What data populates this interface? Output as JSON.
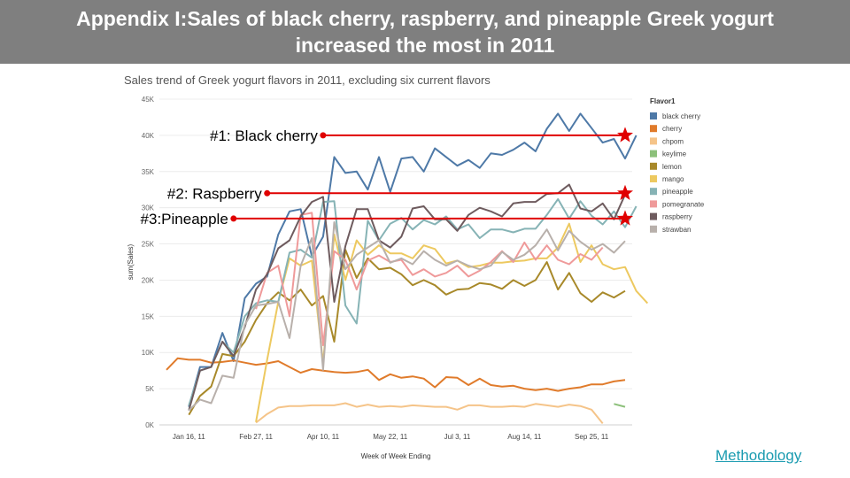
{
  "header": {
    "title_line1": "Appendix I:Sales of black cherry, raspberry, and pineapple Greek yogurt",
    "title_line2": "increased the most in 2011"
  },
  "methodology_link": "Methodology",
  "chart_data": {
    "type": "line",
    "title": "Sales trend of Greek yogurt flavors in 2011, excluding six current flavors",
    "xlabel": "Week of Week Ending",
    "ylabel": "sum(Sales)",
    "ylim": [
      0,
      45000
    ],
    "y_ticks": [
      "0K",
      "5K",
      "10K",
      "15K",
      "20K",
      "25K",
      "30K",
      "35K",
      "40K",
      "45K"
    ],
    "x_ticks": [
      "Jan 16, 11",
      "Feb 27, 11",
      "Apr 10, 11",
      "May 22, 11",
      "Jul 3, 11",
      "Aug 14, 11",
      "Sep 25, 11"
    ],
    "x_tick_weeks": [
      3,
      9,
      15,
      21,
      27,
      33,
      39
    ],
    "weeks": 42,
    "gridlines": true,
    "legend_title": "Flavor1",
    "legend_position": "right",
    "series": [
      {
        "name": "black cherry",
        "color": "#4e79a7",
        "start": 3,
        "values": [
          2500,
          8000,
          8000,
          12700,
          8800,
          17500,
          19500,
          20500,
          26300,
          29500,
          29800,
          23300,
          26000,
          37000,
          34800,
          35000,
          32500,
          37000,
          32200,
          36800,
          37000,
          35000,
          38200,
          37000,
          35800,
          36600,
          35500,
          37500,
          37300,
          38000,
          39000,
          37800,
          40900,
          43000,
          40600,
          43000,
          41000,
          39000,
          39500,
          36800,
          40000
        ]
      },
      {
        "name": "cherry",
        "color": "#e07b2b",
        "start": 1,
        "values": [
          7600,
          9200,
          9000,
          9000,
          8600,
          8700,
          8900,
          8600,
          8300,
          8500,
          8800,
          8000,
          7200,
          7700,
          7500,
          7300,
          7200,
          7300,
          7600,
          6200,
          7000,
          6500,
          6700,
          6400,
          5200,
          6600,
          6500,
          5500,
          6400,
          5500,
          5300,
          5400,
          5000,
          4800,
          5000,
          4700,
          5000,
          5200,
          5600,
          5600,
          6000,
          6200
        ]
      },
      {
        "name": "chpom",
        "color": "#f5c489",
        "start": 9,
        "values": [
          300,
          1500,
          2400,
          2600,
          2600,
          2700,
          2700,
          2700,
          3000,
          2500,
          2800,
          2500,
          2600,
          2500,
          2700,
          2600,
          2500,
          2500,
          2100,
          2700,
          2700,
          2500,
          2500,
          2600,
          2500,
          2900,
          2700,
          2500,
          2800,
          2600,
          2100,
          200
        ]
      },
      {
        "name": "keylime",
        "color": "#8cc07a",
        "start": 41,
        "values": [
          2900,
          2500
        ]
      },
      {
        "name": "lemon",
        "color": "#a8892a",
        "start": 3,
        "values": [
          1400,
          4000,
          5300,
          9800,
          9500,
          11500,
          14500,
          16800,
          18300,
          17200,
          18700,
          16500,
          17800,
          11500,
          24200,
          20300,
          23000,
          21500,
          21700,
          20800,
          19300,
          20000,
          19300,
          18000,
          18700,
          18800,
          19600,
          19400,
          18800,
          20000,
          19200,
          20000,
          22500,
          18700,
          21000,
          18200,
          17000,
          18300,
          17600,
          18500
        ]
      },
      {
        "name": "mango",
        "color": "#edc960",
        "start": 9,
        "values": [
          400,
          9000,
          17000,
          23000,
          22000,
          22700,
          8500,
          26300,
          20000,
          25500,
          23500,
          24800,
          23700,
          23700,
          23000,
          24800,
          24300,
          22300,
          22700,
          21800,
          22000,
          22400,
          22400,
          22600,
          22700,
          23000,
          23000,
          24500,
          27800,
          22500,
          24800,
          22200,
          21500,
          21800,
          18500,
          16800
        ]
      },
      {
        "name": "pineapple",
        "color": "#86b3b5",
        "start": 3,
        "values": [
          2700,
          7500,
          8000,
          11500,
          10000,
          15000,
          16800,
          17200,
          17000,
          23800,
          24200,
          23100,
          30800,
          30900,
          16500,
          14000,
          28200,
          25500,
          27800,
          28600,
          27000,
          28300,
          27700,
          28800,
          27000,
          27700,
          25800,
          27000,
          27000,
          26600,
          27100,
          27100,
          29000,
          31200,
          28500,
          30900,
          28900,
          27700,
          29500,
          27300,
          30200
        ]
      },
      {
        "name": "pomegranate",
        "color": "#ef9a9a",
        "start": 9,
        "values": [
          16000,
          21000,
          22000,
          15000,
          29000,
          29300,
          11000,
          24000,
          22800,
          18700,
          22700,
          23400,
          22500,
          22800,
          20700,
          21500,
          20500,
          21000,
          22000,
          20500,
          21300,
          22500,
          24000,
          22500,
          25200,
          22800,
          24800,
          22800,
          22200,
          23600,
          22800,
          24500
        ]
      },
      {
        "name": "raspberry",
        "color": "#6e5b5e",
        "start": 3,
        "values": [
          2000,
          7500,
          8000,
          11500,
          9500,
          13500,
          18700,
          20800,
          24400,
          25500,
          28800,
          30800,
          31500,
          17000,
          24700,
          29800,
          29800,
          25500,
          24500,
          26000,
          29900,
          30200,
          28400,
          28400,
          26800,
          29000,
          30000,
          29500,
          28800,
          30600,
          30800,
          30800,
          31900,
          32000,
          33200,
          29900,
          29500,
          30600,
          28400,
          31800
        ]
      },
      {
        "name": "strawban",
        "color": "#b8b0ab",
        "start": 3,
        "values": [
          2000,
          3500,
          3000,
          6800,
          6500,
          13800,
          16500,
          16700,
          17000,
          12000,
          22000,
          25800,
          7600,
          28000,
          21500,
          23500,
          24500,
          25500,
          22400,
          23000,
          22200,
          24000,
          22800,
          22000,
          22700,
          22000,
          21500,
          22000,
          23900,
          22800,
          23500,
          24800,
          27000,
          24100,
          26800,
          25300,
          24200,
          25000,
          23800,
          25400
        ]
      }
    ],
    "annotations": [
      {
        "label": "#1: Black cherry",
        "y": 40000,
        "start_week": 15
      },
      {
        "label": "#2: Raspberry",
        "y": 32000,
        "start_week": 10
      },
      {
        "label": "#3:Pineapple",
        "y": 28500,
        "start_week": 7
      }
    ],
    "annotation_color": "#e00000"
  }
}
